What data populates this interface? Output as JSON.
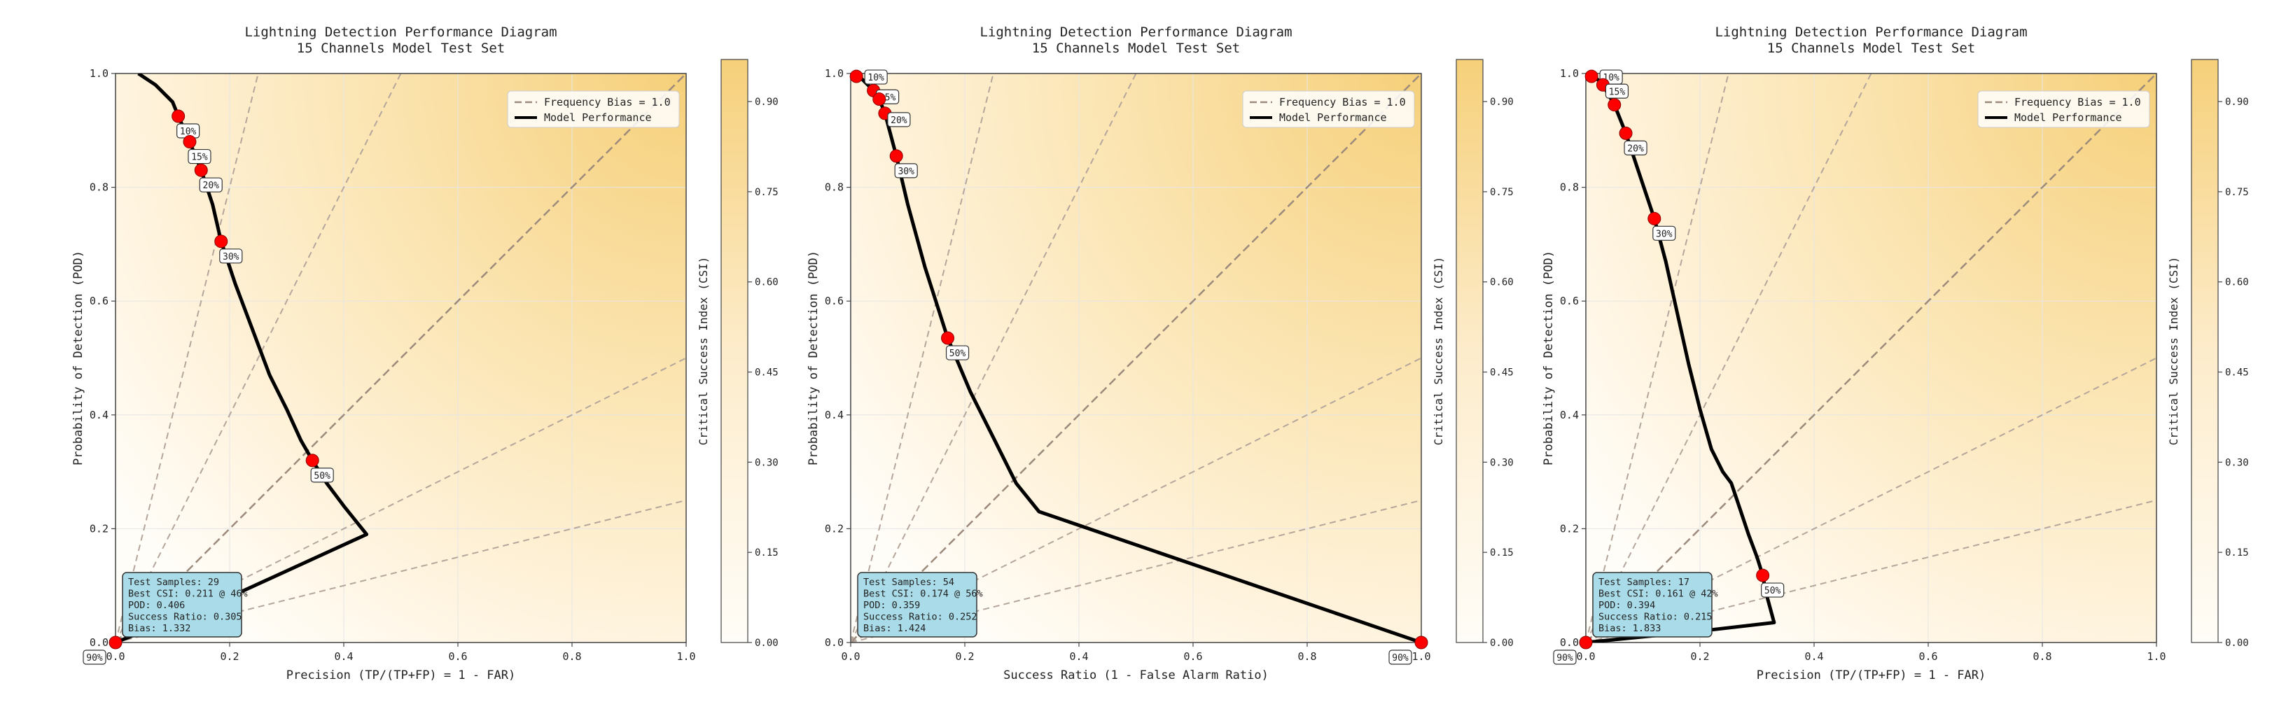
{
  "chart_data": [
    {
      "type": "line",
      "title": "Lightning Detection Performance Diagram",
      "subtitle": "15 Channels Model Test Set",
      "xlabel": "Precision (TP/(TP+FP) = 1 - FAR)",
      "ylabel": "Probability of Detection (POD)",
      "xlim": [
        0,
        1
      ],
      "ylim": [
        0,
        1
      ],
      "x_ticks": [
        "0.0",
        "0.2",
        "0.4",
        "0.6",
        "0.8",
        "1.0"
      ],
      "y_ticks": [
        "0.0",
        "0.2",
        "0.4",
        "0.6",
        "0.8",
        "1.0"
      ],
      "colorbar_label": "Critical Success Index (CSI)",
      "colorbar_ticks": [
        "0.00",
        "0.15",
        "0.30",
        "0.45",
        "0.60",
        "0.75",
        "0.90"
      ],
      "legend": {
        "position": "top-right",
        "bias_label": "Frequency Bias = 1.0",
        "model_label": "Model Performance"
      },
      "bias_lines": [
        0.25,
        0.5,
        1.0,
        2.0,
        4.0
      ],
      "curve": [
        [
          0.04,
          1.0
        ],
        [
          0.07,
          0.98
        ],
        [
          0.1,
          0.95
        ],
        [
          0.11,
          0.925
        ],
        [
          0.13,
          0.88
        ],
        [
          0.15,
          0.83
        ],
        [
          0.17,
          0.77
        ],
        [
          0.185,
          0.705
        ],
        [
          0.21,
          0.63
        ],
        [
          0.24,
          0.55
        ],
        [
          0.27,
          0.47
        ],
        [
          0.3,
          0.41
        ],
        [
          0.325,
          0.355
        ],
        [
          0.345,
          0.32
        ],
        [
          0.37,
          0.28
        ],
        [
          0.4,
          0.24
        ],
        [
          0.44,
          0.19
        ],
        [
          0.2,
          0.08
        ],
        [
          0.0,
          0.0
        ]
      ],
      "markers": [
        {
          "x": 0.11,
          "y": 0.925,
          "label": "10%"
        },
        {
          "x": 0.13,
          "y": 0.88,
          "label": "15%"
        },
        {
          "x": 0.15,
          "y": 0.83,
          "label": "20%"
        },
        {
          "x": 0.185,
          "y": 0.705,
          "label": "30%"
        },
        {
          "x": 0.345,
          "y": 0.32,
          "label": "50%"
        },
        {
          "x": 0.0,
          "y": 0.0,
          "label": "90%"
        }
      ],
      "stats": [
        "Test Samples: 29",
        "Best CSI: 0.211 @ 46%",
        "POD: 0.406",
        "Success Ratio: 0.305",
        "Bias: 1.332"
      ]
    },
    {
      "type": "line",
      "title": "Lightning Detection Performance Diagram",
      "subtitle": "15 Channels Model Test Set",
      "xlabel": "Success Ratio (1 - False Alarm Ratio)",
      "ylabel": "Probability of Detection (POD)",
      "xlim": [
        0,
        1
      ],
      "ylim": [
        0,
        1
      ],
      "x_ticks": [
        "0.0",
        "0.2",
        "0.4",
        "0.6",
        "0.8",
        "1.0"
      ],
      "y_ticks": [
        "0.0",
        "0.2",
        "0.4",
        "0.6",
        "0.8",
        "1.0"
      ],
      "colorbar_label": "Critical Success Index (CSI)",
      "colorbar_ticks": [
        "0.00",
        "0.15",
        "0.30",
        "0.45",
        "0.60",
        "0.75",
        "0.90"
      ],
      "legend": {
        "position": "top-right",
        "bias_label": "Frequency Bias = 1.0",
        "model_label": "Model Performance"
      },
      "bias_lines": [
        0.25,
        0.5,
        1.0,
        2.0,
        4.0
      ],
      "curve": [
        [
          0.0,
          1.0
        ],
        [
          0.02,
          0.99
        ],
        [
          0.04,
          0.97
        ],
        [
          0.05,
          0.955
        ],
        [
          0.06,
          0.93
        ],
        [
          0.08,
          0.855
        ],
        [
          0.1,
          0.77
        ],
        [
          0.13,
          0.66
        ],
        [
          0.17,
          0.535
        ],
        [
          0.21,
          0.44
        ],
        [
          0.25,
          0.36
        ],
        [
          0.29,
          0.28
        ],
        [
          0.33,
          0.23
        ],
        [
          1.0,
          0.0
        ]
      ],
      "markers": [
        {
          "x": 0.01,
          "y": 0.995,
          "label": "10%"
        },
        {
          "x": 0.04,
          "y": 0.97,
          "label": "15%"
        },
        {
          "x": 0.05,
          "y": 0.955,
          "label": ""
        },
        {
          "x": 0.06,
          "y": 0.93,
          "label": "20%"
        },
        {
          "x": 0.08,
          "y": 0.855,
          "label": "30%"
        },
        {
          "x": 0.17,
          "y": 0.535,
          "label": "50%"
        },
        {
          "x": 1.0,
          "y": 0.0,
          "label": "90%"
        }
      ],
      "stats": [
        "Test Samples: 54",
        "Best CSI: 0.174 @ 56%",
        "POD: 0.359",
        "Success Ratio: 0.252",
        "Bias: 1.424"
      ]
    },
    {
      "type": "line",
      "title": "Lightning Detection Performance Diagram",
      "subtitle": "15 Channels Model Test Set",
      "xlabel": "Precision (TP/(TP+FP) = 1 - FAR)",
      "ylabel": "Probability of Detection (POD)",
      "xlim": [
        0,
        1
      ],
      "ylim": [
        0,
        1
      ],
      "x_ticks": [
        "0.0",
        "0.2",
        "0.4",
        "0.6",
        "0.8",
        "1.0"
      ],
      "y_ticks": [
        "0.0",
        "0.2",
        "0.4",
        "0.6",
        "0.8",
        "1.0"
      ],
      "colorbar_label": "Critical Success Index (CSI)",
      "colorbar_ticks": [
        "0.00",
        "0.15",
        "0.30",
        "0.45",
        "0.60",
        "0.75",
        "0.90"
      ],
      "legend": {
        "position": "top-right",
        "bias_label": "Frequency Bias = 1.0",
        "model_label": "Model Performance"
      },
      "bias_lines": [
        0.25,
        0.5,
        1.0,
        2.0,
        4.0
      ],
      "curve": [
        [
          0.01,
          1.0
        ],
        [
          0.03,
          0.98
        ],
        [
          0.05,
          0.945
        ],
        [
          0.07,
          0.895
        ],
        [
          0.09,
          0.835
        ],
        [
          0.12,
          0.745
        ],
        [
          0.14,
          0.67
        ],
        [
          0.16,
          0.58
        ],
        [
          0.18,
          0.49
        ],
        [
          0.2,
          0.41
        ],
        [
          0.22,
          0.34
        ],
        [
          0.24,
          0.3
        ],
        [
          0.255,
          0.28
        ],
        [
          0.27,
          0.235
        ],
        [
          0.285,
          0.19
        ],
        [
          0.3,
          0.15
        ],
        [
          0.31,
          0.118
        ],
        [
          0.315,
          0.09
        ],
        [
          0.33,
          0.035
        ],
        [
          0.2,
          0.02
        ],
        [
          0.05,
          0.005
        ],
        [
          0.0,
          0.0
        ]
      ],
      "markers": [
        {
          "x": 0.01,
          "y": 0.995,
          "label": "10%"
        },
        {
          "x": 0.03,
          "y": 0.98,
          "label": "15%"
        },
        {
          "x": 0.05,
          "y": 0.945,
          "label": ""
        },
        {
          "x": 0.07,
          "y": 0.895,
          "label": "20%"
        },
        {
          "x": 0.12,
          "y": 0.745,
          "label": "30%"
        },
        {
          "x": 0.31,
          "y": 0.118,
          "label": "50%"
        },
        {
          "x": 0.0,
          "y": 0.0,
          "label": "90%"
        }
      ],
      "stats": [
        "Test Samples: 17",
        "Best CSI: 0.161 @ 42%",
        "POD: 0.394",
        "Success Ratio: 0.215",
        "Bias: 1.833"
      ]
    }
  ],
  "colors": {
    "curve": "#000000",
    "marker": "#ff0000",
    "bias_line": "#b5a69c",
    "bias_main": "#9c8a7c",
    "csi_high": "#f6d07a",
    "csi_low": "#fffdf8",
    "stats_box": "#a9dce8"
  }
}
